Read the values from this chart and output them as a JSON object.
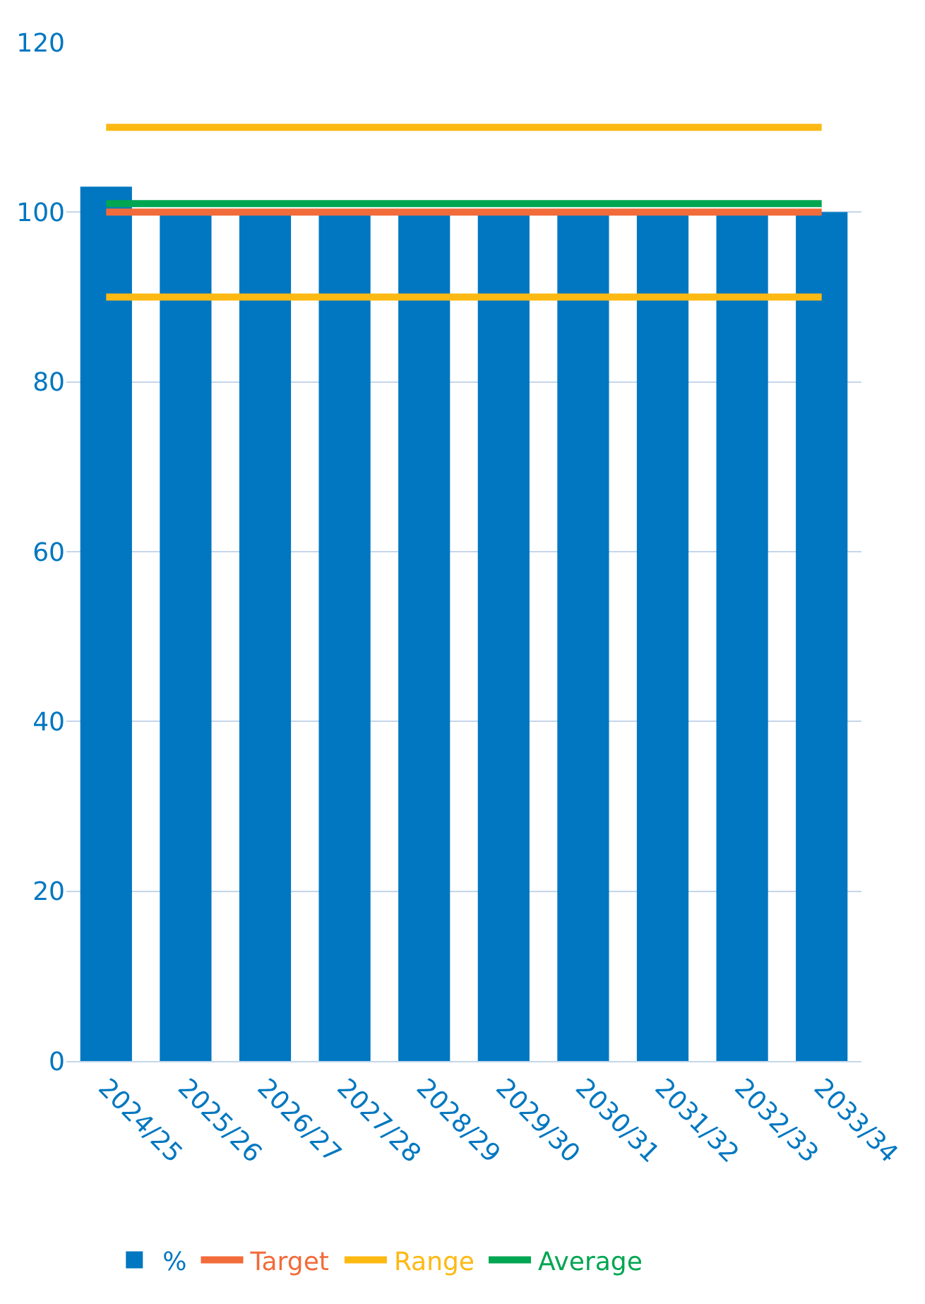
{
  "chart_data": {
    "type": "bar",
    "categories": [
      "2024/25",
      "2025/26",
      "2026/27",
      "2027/28",
      "2028/29",
      "2029/30",
      "2030/31",
      "2031/32",
      "2032/33",
      "2033/34"
    ],
    "series": [
      {
        "name": "%",
        "color": "#0077c0",
        "values": [
          103,
          100,
          100,
          100,
          100,
          100,
          100,
          100,
          100,
          100
        ]
      },
      {
        "name": "Target",
        "type": "line",
        "color": "#f26b3a",
        "values": [
          100,
          100,
          100,
          100,
          100,
          100,
          100,
          100,
          100,
          100
        ]
      },
      {
        "name": "Range",
        "type": "line",
        "color": "#fdb913",
        "values": [
          110,
          110,
          110,
          110,
          110,
          110,
          110,
          110,
          110,
          110
        ]
      },
      {
        "type": "line",
        "color": "#fdb913",
        "values": [
          90,
          90,
          90,
          90,
          90,
          90,
          90,
          90,
          90,
          90
        ]
      },
      {
        "name": "Average",
        "type": "line",
        "color": "#00a651",
        "values": [
          101,
          101,
          101,
          101,
          101,
          101,
          101,
          101,
          101,
          101
        ]
      }
    ],
    "ylim": [
      0,
      120
    ],
    "yticks": [
      0,
      20,
      40,
      60,
      80,
      100,
      120
    ],
    "grid": "y",
    "legend": "bottom",
    "marker": "none",
    "line_style": "solid"
  }
}
